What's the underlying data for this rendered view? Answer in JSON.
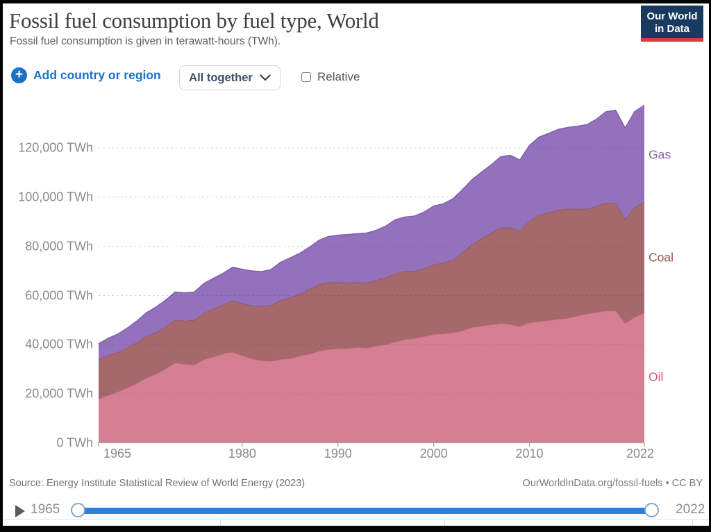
{
  "header": {
    "title": "Fossil fuel consumption by fuel type, World",
    "subtitle": "Fossil fuel consumption is given in terawatt-hours (TWh).",
    "logo": {
      "line1": "Our World",
      "line2": "in Data"
    }
  },
  "controls": {
    "add_button_label": "Add country or region",
    "dropdown_label": "All together",
    "relative_label": "Relative",
    "relative_checked": false
  },
  "colors": {
    "accent_blue": "#1c70c9",
    "slider_blue": "#2e7ddf",
    "logo_navy": "#183a5f",
    "logo_red": "#d63e3e"
  },
  "chart_data": {
    "type": "area",
    "stacked": true,
    "title": "Fossil fuel consumption by fuel type, World",
    "unit": "TWh",
    "grid": "dashed",
    "xlim": [
      1965,
      2022
    ],
    "ylim": [
      0,
      139200
    ],
    "legend_position": "right-edge-labels",
    "years": [
      1965,
      1966,
      1967,
      1968,
      1969,
      1970,
      1971,
      1972,
      1973,
      1974,
      1975,
      1976,
      1977,
      1978,
      1979,
      1980,
      1981,
      1982,
      1983,
      1984,
      1985,
      1986,
      1987,
      1988,
      1989,
      1990,
      1991,
      1992,
      1993,
      1994,
      1995,
      1996,
      1997,
      1998,
      1999,
      2000,
      2001,
      2002,
      2003,
      2004,
      2005,
      2006,
      2007,
      2008,
      2009,
      2010,
      2011,
      2012,
      2013,
      2014,
      2015,
      2016,
      2017,
      2018,
      2019,
      2020,
      2021,
      2022
    ],
    "series": [
      {
        "name": "Oil",
        "fill": "#d67f92",
        "line": "#c96e84",
        "label_color": "#c45c74",
        "values": [
          18000,
          19400,
          20800,
          22500,
          24300,
          26500,
          28100,
          30200,
          32600,
          32100,
          31800,
          34000,
          35100,
          36400,
          37000,
          35600,
          34400,
          33500,
          33300,
          34100,
          34300,
          35500,
          36200,
          37400,
          38100,
          38400,
          38500,
          38900,
          38700,
          39500,
          40100,
          41100,
          42200,
          42500,
          43400,
          44200,
          44500,
          44800,
          45600,
          47100,
          47600,
          48100,
          48700,
          48300,
          47400,
          48900,
          49400,
          49900,
          50400,
          50800,
          51700,
          52500,
          53200,
          53700,
          53900,
          48800,
          51200,
          53000
        ]
      },
      {
        "name": "Coal",
        "fill": "#a5686b",
        "line": "#96585c",
        "label_color": "#9c5458",
        "values": [
          16100,
          16300,
          16100,
          16300,
          16600,
          16900,
          16900,
          17100,
          17600,
          17600,
          18200,
          18900,
          19600,
          19900,
          20900,
          21300,
          21600,
          22100,
          22800,
          23900,
          24900,
          25300,
          26300,
          27100,
          27300,
          27000,
          26800,
          26500,
          26600,
          26800,
          27200,
          27800,
          27800,
          27500,
          27600,
          28400,
          28800,
          29700,
          31900,
          33700,
          35600,
          37300,
          38900,
          39400,
          39100,
          41300,
          43500,
          43800,
          44400,
          44500,
          43500,
          42700,
          43200,
          44000,
          43800,
          42300,
          44700,
          44900
        ]
      },
      {
        "name": "Gas",
        "fill": "#9471bd",
        "line": "#8460ae",
        "label_color": "#8a63ac",
        "values": [
          6300,
          6900,
          7400,
          8000,
          8750,
          9600,
          10300,
          10800,
          11200,
          11400,
          11400,
          12000,
          12300,
          12700,
          13600,
          13800,
          14000,
          14100,
          14400,
          15500,
          16100,
          16300,
          17100,
          17900,
          18600,
          19100,
          19500,
          19700,
          20100,
          20200,
          20900,
          21900,
          21900,
          22300,
          22900,
          23800,
          24000,
          24800,
          25500,
          26300,
          27000,
          27700,
          28800,
          29300,
          28600,
          30800,
          31500,
          32200,
          32700,
          33000,
          33600,
          34300,
          35300,
          37000,
          37600,
          37000,
          38900,
          39400
        ]
      }
    ],
    "yticks": [
      {
        "value": 0,
        "label": "0 TWh"
      },
      {
        "value": 20000,
        "label": "20,000 TWh"
      },
      {
        "value": 40000,
        "label": "40,000 TWh"
      },
      {
        "value": 60000,
        "label": "60,000 TWh"
      },
      {
        "value": 80000,
        "label": "80,000 TWh"
      },
      {
        "value": 100000,
        "label": "100,000 TWh"
      },
      {
        "value": 120000,
        "label": "120,000 TWh"
      }
    ],
    "xticks": [
      {
        "value": 1965,
        "label": "1965"
      },
      {
        "value": 1980,
        "label": "1980"
      },
      {
        "value": 1990,
        "label": "1990"
      },
      {
        "value": 2000,
        "label": "2000"
      },
      {
        "value": 2010,
        "label": "2010"
      },
      {
        "value": 2022,
        "label": "2022"
      }
    ]
  },
  "footer": {
    "source": "Source: Energy Institute Statistical Review of World Energy (2023)",
    "attribution": "OurWorldInData.org/fossil-fuels • CC BY"
  },
  "timeline": {
    "start_year": "1965",
    "end_year": "2022"
  }
}
